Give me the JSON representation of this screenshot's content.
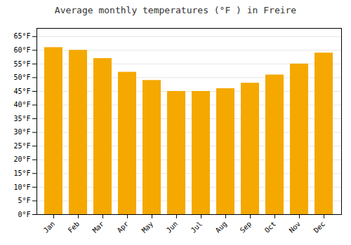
{
  "chart_data": {
    "type": "bar",
    "title": "Average monthly temperatures (°F ) in Freire",
    "categories": [
      "Jan",
      "Feb",
      "Mar",
      "Apr",
      "May",
      "Jun",
      "Jul",
      "Aug",
      "Sep",
      "Oct",
      "Nov",
      "Dec"
    ],
    "values": [
      61,
      60,
      57,
      52,
      49,
      45,
      45,
      46,
      48,
      51,
      55,
      59
    ],
    "color": "#F5A800",
    "ylim": [
      0,
      68
    ],
    "yticks": [
      {
        "value": 0,
        "label": "0°F"
      },
      {
        "value": 5,
        "label": "5°F"
      },
      {
        "value": 10,
        "label": "10°F"
      },
      {
        "value": 15,
        "label": "15°F"
      },
      {
        "value": 20,
        "label": "20°F"
      },
      {
        "value": 25,
        "label": "25°F"
      },
      {
        "value": 30,
        "label": "30°F"
      },
      {
        "value": 35,
        "label": "35°F"
      },
      {
        "value": 40,
        "label": "40°F"
      },
      {
        "value": 45,
        "label": "45°F"
      },
      {
        "value": 50,
        "label": "50°F"
      },
      {
        "value": 55,
        "label": "55°F"
      },
      {
        "value": 60,
        "label": "60°F"
      },
      {
        "value": 65,
        "label": "65°F"
      }
    ],
    "grid": true
  }
}
